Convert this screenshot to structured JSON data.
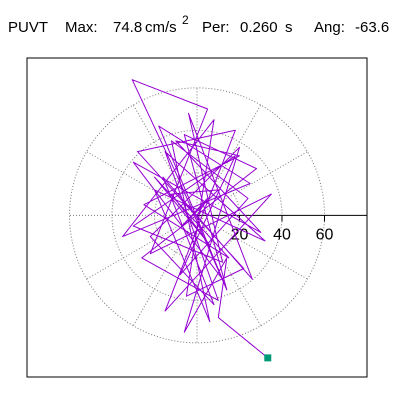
{
  "chart_data": {
    "type": "polar-trace",
    "title": {
      "label": "PUVT",
      "max_label": "Max:",
      "max": 74.8,
      "max_unit": "cm/s",
      "max_unit_power": "2",
      "per_label": "Per:",
      "per": {
        "value": 0.26,
        "label": "0.260"
      },
      "per_unit": "s",
      "ang_label": "Ang:",
      "ang": -63.6
    },
    "x": [
      0,
      5,
      -8,
      10,
      -12,
      6,
      -20,
      15,
      -25,
      20,
      -10,
      30,
      -30,
      12,
      -18,
      25,
      -35,
      8,
      -5,
      22,
      -28,
      18,
      -15,
      35,
      -22,
      5,
      -30.5,
      -10,
      14,
      -6,
      28,
      -26,
      10,
      -15,
      32,
      -20,
      6,
      -12,
      24,
      -8,
      18,
      -30,
      12,
      -4,
      26,
      -16,
      8,
      -22,
      20,
      -6,
      14,
      10,
      33.3
    ],
    "y": [
      0,
      8,
      -6,
      12,
      10,
      -14,
      18,
      -20,
      5,
      28,
      35,
      -8,
      25,
      -30,
      42,
      15,
      -10,
      45,
      -38,
      -25,
      30,
      40,
      -45,
      10,
      -18,
      50,
      63.8,
      20,
      -35,
      38,
      22,
      -20,
      -40,
      30,
      -12,
      12,
      -50,
      35,
      8,
      -28,
      28,
      -5,
      -22,
      48,
      -30,
      18,
      -42,
      -10,
      32,
      -55,
      -20,
      -48,
      -67
    ],
    "color": "#9400d3",
    "marker_color": "#009977",
    "xlim": [
      -80,
      80
    ],
    "ylim": [
      -76,
      74
    ],
    "rticks": [
      20,
      40,
      60
    ]
  }
}
